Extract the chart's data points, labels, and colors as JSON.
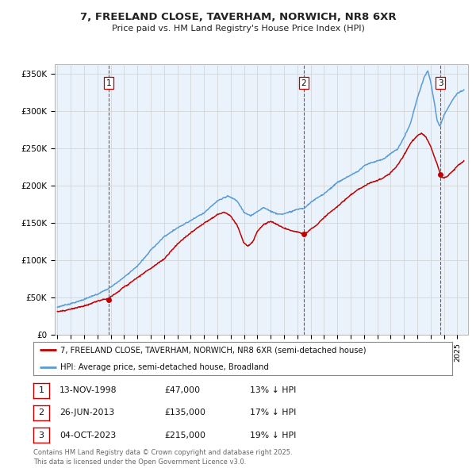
{
  "title": "7, FREELAND CLOSE, TAVERHAM, NORWICH, NR8 6XR",
  "subtitle": "Price paid vs. HM Land Registry's House Price Index (HPI)",
  "ylim": [
    0,
    362500
  ],
  "yticks": [
    0,
    50000,
    100000,
    150000,
    200000,
    250000,
    300000,
    350000
  ],
  "ytick_labels": [
    "£0",
    "£50K",
    "£100K",
    "£150K",
    "£200K",
    "£250K",
    "£300K",
    "£350K"
  ],
  "xlim_start": 1994.8,
  "xlim_end": 2025.8,
  "sale_dates": [
    1998.87,
    2013.49,
    2023.75
  ],
  "sale_prices": [
    47000,
    135000,
    215000
  ],
  "sale_labels": [
    "1",
    "2",
    "3"
  ],
  "sale_info": [
    {
      "num": "1",
      "date": "13-NOV-1998",
      "price": "£47,000",
      "pct": "13% ↓ HPI"
    },
    {
      "num": "2",
      "date": "26-JUN-2013",
      "price": "£135,000",
      "pct": "17% ↓ HPI"
    },
    {
      "num": "3",
      "date": "04-OCT-2023",
      "price": "£215,000",
      "pct": "19% ↓ HPI"
    }
  ],
  "hpi_color": "#5b9bd5",
  "price_color": "#c00000",
  "vline_color": "#c00000",
  "grid_color": "#d0d0d0",
  "chart_bg": "#eaf3fb",
  "background_color": "#ffffff",
  "legend_label_red": "7, FREELAND CLOSE, TAVERHAM, NORWICH, NR8 6XR (semi-detached house)",
  "legend_label_blue": "HPI: Average price, semi-detached house, Broadland",
  "footer": "Contains HM Land Registry data © Crown copyright and database right 2025.\nThis data is licensed under the Open Government Licence v3.0."
}
